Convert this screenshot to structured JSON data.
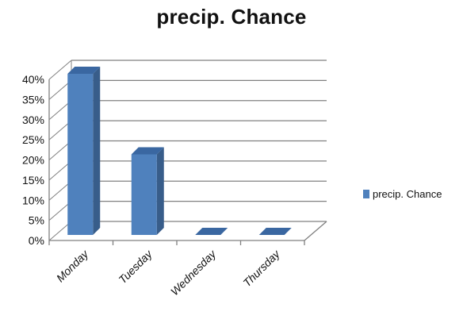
{
  "chart_data": {
    "type": "bar",
    "title": "precip. Chance",
    "categories": [
      "Monday",
      "Tuesday",
      "Wednesday",
      "Thursday"
    ],
    "series": [
      {
        "name": "precip. Chance",
        "values": [
          40,
          20,
          0,
          0
        ]
      }
    ],
    "ylim": [
      0,
      40
    ],
    "yticks": [
      "0%",
      "5%",
      "10%",
      "15%",
      "20%",
      "25%",
      "30%",
      "35%",
      "40%"
    ],
    "xlabel": "",
    "ylabel": "",
    "grid": true,
    "legend": "right",
    "style": "3d-column",
    "colors": {
      "bar": "#4f81bd",
      "grid": "#808080"
    }
  }
}
